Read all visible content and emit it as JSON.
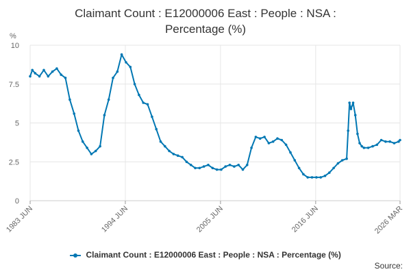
{
  "chart_data": {
    "type": "line",
    "title": "Claimant Count : E12000006 East : People : NSA :\nPercentage (%)",
    "ylabel": "%",
    "xlabel": "",
    "ylim": [
      0,
      10
    ],
    "yticks": [
      "0",
      "2.5",
      "5",
      "7.5",
      "10"
    ],
    "xticks": [
      "1983 JUN",
      "1994 JUN",
      "2005 JUN",
      "2016 JUN",
      "2026 MAR"
    ],
    "xlim": [
      1983.42,
      2026.17
    ],
    "grid": true,
    "legend_position": "bottom",
    "color": "#0077b3",
    "series": [
      {
        "name": "Claimant Count : E12000006 East : People : NSA : Percentage (%)",
        "x": [
          1983.42,
          1983.67,
          1984.0,
          1984.5,
          1985.0,
          1985.5,
          1986.0,
          1986.5,
          1987.0,
          1987.5,
          1988.0,
          1988.5,
          1989.0,
          1989.5,
          1990.0,
          1990.5,
          1991.0,
          1991.5,
          1992.0,
          1992.5,
          1993.0,
          1993.5,
          1994.0,
          1994.5,
          1995.0,
          1995.5,
          1996.0,
          1996.5,
          1997.0,
          1997.5,
          1998.0,
          1998.5,
          1999.0,
          1999.5,
          2000.0,
          2000.5,
          2001.0,
          2001.5,
          2002.0,
          2002.5,
          2003.0,
          2003.5,
          2004.0,
          2004.5,
          2005.0,
          2005.5,
          2006.0,
          2006.5,
          2007.0,
          2007.5,
          2008.0,
          2008.5,
          2009.0,
          2009.5,
          2010.0,
          2010.5,
          2011.0,
          2011.5,
          2012.0,
          2012.5,
          2013.0,
          2013.5,
          2014.0,
          2014.5,
          2015.0,
          2015.5,
          2016.0,
          2016.5,
          2017.0,
          2017.5,
          2018.0,
          2018.5,
          2019.0,
          2019.5,
          2020.0,
          2020.17,
          2020.33,
          2020.5,
          2020.75,
          2021.0,
          2021.25,
          2021.5,
          2021.75,
          2022.0,
          2022.5,
          2023.0,
          2023.5,
          2024.0,
          2024.5,
          2025.0,
          2025.5,
          2026.0,
          2026.17
        ],
        "values": [
          8.0,
          8.4,
          8.2,
          8.0,
          8.4,
          8.0,
          8.3,
          8.5,
          8.1,
          7.9,
          6.5,
          5.6,
          4.5,
          3.8,
          3.4,
          3.0,
          3.2,
          3.5,
          5.5,
          6.5,
          7.9,
          8.3,
          9.4,
          8.9,
          8.6,
          7.5,
          6.8,
          6.3,
          6.2,
          5.4,
          4.6,
          3.8,
          3.5,
          3.2,
          3.0,
          2.9,
          2.8,
          2.5,
          2.3,
          2.1,
          2.1,
          2.2,
          2.3,
          2.1,
          2.0,
          2.0,
          2.2,
          2.3,
          2.2,
          2.3,
          2.0,
          2.3,
          3.4,
          4.1,
          4.0,
          4.1,
          3.7,
          3.8,
          4.0,
          3.9,
          3.6,
          3.1,
          2.6,
          2.1,
          1.7,
          1.5,
          1.5,
          1.5,
          1.5,
          1.6,
          1.8,
          2.1,
          2.4,
          2.6,
          2.7,
          4.5,
          6.3,
          5.9,
          6.3,
          5.5,
          4.3,
          3.7,
          3.5,
          3.4,
          3.4,
          3.5,
          3.6,
          3.9,
          3.8,
          3.8,
          3.7,
          3.8,
          3.9
        ]
      }
    ]
  },
  "source_label": "Source:"
}
